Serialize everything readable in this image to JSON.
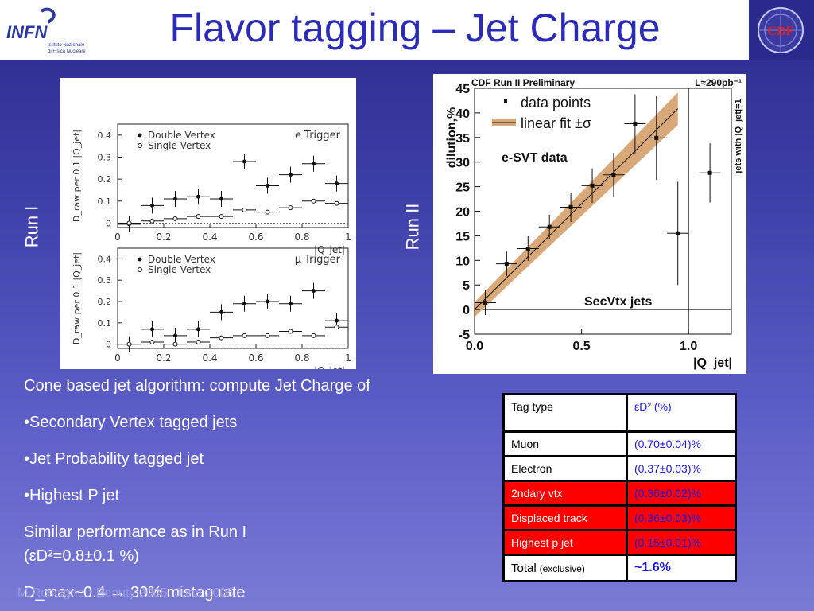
{
  "slide": {
    "title": "Flavor tagging – Jet Charge"
  },
  "logos": {
    "infn_main": "INFN",
    "infn_sub1": "Istituto Nazionale",
    "infn_sub2": "di Fisica Nucleare",
    "cdf": "CDF"
  },
  "run_labels": {
    "left": "Run I",
    "right": "Run II"
  },
  "run1_plots": [
    {
      "type": "scatter",
      "legend": [
        "Double Vertex",
        "Single Vertex"
      ],
      "trigger_label": "e Trigger",
      "ylabel": "D_raw per 0.1 |Q_jet|",
      "xlabel": "|Q_jet|",
      "x_ticks": [
        "0",
        "0.2",
        "0.4",
        "0.6",
        "0.8",
        "1"
      ],
      "y_ticks": [
        "0",
        "0.1",
        "0.2",
        "0.3",
        "0.4"
      ],
      "xlim": [
        0,
        1
      ],
      "ylim": [
        -0.02,
        0.45
      ],
      "series": [
        {
          "name": "Double Vertex",
          "x": [
            0.05,
            0.15,
            0.25,
            0.35,
            0.45,
            0.55,
            0.65,
            0.75,
            0.85,
            0.95
          ],
          "y": [
            -0.005,
            0.08,
            0.11,
            0.12,
            0.11,
            0.28,
            0.17,
            0.22,
            0.27,
            0.18
          ]
        },
        {
          "name": "Single Vertex",
          "x": [
            0.05,
            0.15,
            0.25,
            0.35,
            0.45,
            0.55,
            0.65,
            0.75,
            0.85,
            0.95
          ],
          "y": [
            0.0,
            0.01,
            0.02,
            0.03,
            0.03,
            0.06,
            0.05,
            0.07,
            0.1,
            0.09
          ]
        }
      ]
    },
    {
      "type": "scatter",
      "legend": [
        "Double Vertex",
        "Single Vertex"
      ],
      "trigger_label": "μ Trigger",
      "ylabel": "D_raw per 0.1 |Q_jet|",
      "xlabel": "|Q_jet|",
      "x_ticks": [
        "0",
        "0.2",
        "0.4",
        "0.6",
        "0.8",
        "1"
      ],
      "y_ticks": [
        "0",
        "0.1",
        "0.2",
        "0.3",
        "0.4"
      ],
      "xlim": [
        0,
        1
      ],
      "ylim": [
        -0.02,
        0.45
      ],
      "series": [
        {
          "name": "Double Vertex",
          "x": [
            0.05,
            0.15,
            0.25,
            0.35,
            0.45,
            0.55,
            0.65,
            0.75,
            0.85,
            0.95
          ],
          "y": [
            0.0,
            0.07,
            0.04,
            0.07,
            0.15,
            0.19,
            0.2,
            0.19,
            0.25,
            0.11
          ]
        },
        {
          "name": "Single Vertex",
          "x": [
            0.05,
            0.15,
            0.25,
            0.35,
            0.45,
            0.55,
            0.65,
            0.75,
            0.85,
            0.95
          ],
          "y": [
            0.0,
            0.01,
            0.0,
            0.01,
            0.03,
            0.04,
            0.04,
            0.06,
            0.04,
            0.08
          ]
        }
      ]
    }
  ],
  "chart_data": {
    "type": "scatter",
    "header_left": "CDF Run II Preliminary",
    "header_right": "L≈290pb⁻¹",
    "legend": [
      "data points",
      "linear fit ±σ"
    ],
    "annotation_main": "e-SVT data",
    "annotation_bottom": "SecVtx jets",
    "ylabel": "dilution,%",
    "xlabel": "|Q_jet|",
    "right_label": "jets with |Q_jet|=1",
    "x_ticks": [
      "0.0",
      "0.5",
      "1.0"
    ],
    "y_ticks": [
      "-5",
      "0",
      "5",
      "10",
      "15",
      "20",
      "25",
      "30",
      "35",
      "40",
      "45"
    ],
    "xlim": [
      0,
      1.2
    ],
    "ylim": [
      -5,
      45
    ],
    "series": [
      {
        "name": "data points",
        "x": [
          0.05,
          0.15,
          0.25,
          0.35,
          0.45,
          0.55,
          0.65,
          0.75,
          0.85,
          0.95
        ],
        "y": [
          1.4,
          9.3,
          12.4,
          16.8,
          20.8,
          25.2,
          27.4,
          37.8,
          34.9,
          15.5
        ],
        "err": [
          2.5,
          2.5,
          2.5,
          2.5,
          3.0,
          3.5,
          4.5,
          6.0,
          8.5,
          10.5
        ]
      },
      {
        "name": "jets with |Q_jet|=1",
        "x": [
          1.1
        ],
        "y": [
          27.8
        ],
        "err": [
          6.0
        ]
      }
    ],
    "fit": {
      "intercept": 0.0,
      "slope": 43.0,
      "band": 1.5
    }
  },
  "text": {
    "line1": "Cone based jet algorithm: compute Jet Charge of",
    "line2": "•Secondary Vertex tagged jets",
    "line3": "•Jet Probability tagged jet",
    "line4": "•Highest P jet",
    "line5": "Similar performance as in Run I",
    "line6": "(εD²=0.8±0.1 %)",
    "line7": "D_max~0.4  →  30% mistag rate"
  },
  "table": {
    "header": [
      "Tag type",
      "εD² (%)"
    ],
    "rows": [
      {
        "type": "Muon",
        "value": "(0.70±0.04)%",
        "highlight": false
      },
      {
        "type": "Electron",
        "value": "(0.37±0.03)%",
        "highlight": false
      },
      {
        "type": "2ndary vtx",
        "value": "(0.36±0.02)%",
        "highlight": true
      },
      {
        "type": "Displaced track",
        "value": "(0.36±0.03)%",
        "highlight": true
      },
      {
        "type": "Highest p jet",
        "value": "(0.15±0.01)%",
        "highlight": true
      }
    ],
    "total_label": "Total",
    "total_sub": "(exclusive)",
    "total_value": "~1.6%"
  },
  "footer": {
    "text": "M.Rescigno - Beauty 2005, June 2005"
  },
  "colors": {
    "title": "#2b2bb8",
    "table_red": "#ff0000",
    "table_blue": "#1a1ad8",
    "fit_band": "#d8a878"
  }
}
